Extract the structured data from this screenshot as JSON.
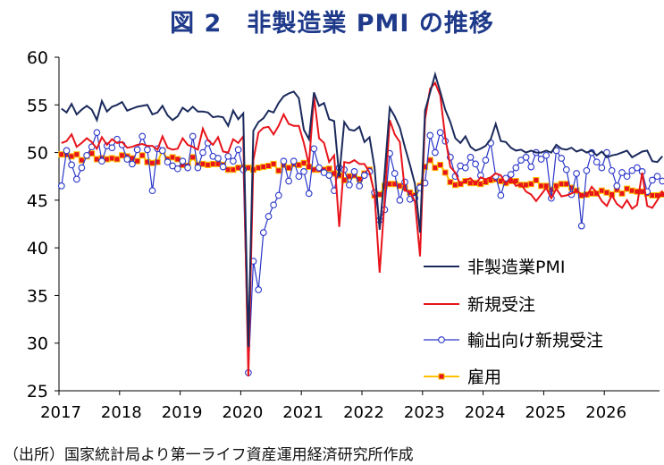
{
  "title": "図 2　非製造業 PMI の推移",
  "source": "（出所）国家統計局より第一ライフ資産運用経済研究所作成",
  "colors": {
    "pmi": "#1b2a5c",
    "new_orders": "#e8141b",
    "export_orders": "#2a36c8",
    "employment_line": "#ffc000",
    "employment_marker": "#e8141b",
    "axis": "#000000"
  },
  "chart_data": {
    "type": "line",
    "title": "図 2　非製造業 PMI の推移",
    "xlabel": "",
    "ylabel": "",
    "ylim": [
      25,
      60
    ],
    "yticks": [
      "25",
      "30",
      "35",
      "40",
      "45",
      "50",
      "55",
      "60"
    ],
    "xticks": [
      "2017",
      "2018",
      "2019",
      "2020",
      "2021",
      "2022",
      "2023",
      "2024",
      "2025",
      "2026"
    ],
    "x_start": "2017-01",
    "x_end": "2026-08",
    "grid": false,
    "legend_position": "right",
    "series": [
      {
        "name": "非製造業PMI",
        "style": "line",
        "values": [
          54.6,
          54.2,
          55.1,
          54.0,
          54.5,
          54.9,
          54.5,
          53.4,
          55.4,
          54.3,
          54.8,
          55.0,
          55.3,
          54.4,
          54.6,
          54.8,
          54.9,
          55.0,
          54.0,
          54.2,
          54.9,
          53.9,
          53.4,
          53.8,
          54.7,
          54.3,
          54.8,
          54.3,
          54.3,
          54.2,
          53.7,
          53.8,
          53.7,
          52.8,
          54.4,
          53.5,
          54.1,
          29.6,
          52.3,
          53.2,
          53.6,
          54.4,
          54.2,
          55.2,
          55.9,
          56.2,
          56.4,
          55.7,
          52.4,
          51.4,
          56.3,
          54.9,
          55.2,
          53.5,
          53.3,
          47.5,
          53.2,
          52.4,
          52.3,
          52.7,
          51.1,
          51.6,
          48.4,
          41.9,
          47.8,
          54.7,
          53.8,
          52.6,
          50.6,
          48.7,
          46.7,
          41.6,
          54.4,
          56.3,
          58.2,
          56.4,
          54.5,
          53.2,
          51.5,
          51.0,
          51.7,
          50.6,
          50.2,
          50.4,
          50.7,
          51.4,
          53.0,
          51.2,
          51.1,
          50.5,
          50.2,
          50.3,
          50.0,
          50.2,
          50.0,
          50.0,
          50.2,
          50.0,
          50.8,
          50.4,
          50.3,
          50.5,
          50.1,
          50.3,
          50.0,
          50.2,
          49.7,
          50.1,
          49.5,
          49.7,
          49.8,
          50.0,
          50.2,
          49.5,
          49.8,
          50.1,
          50.2,
          49.1,
          49.0,
          49.6
        ]
      },
      {
        "name": "新規受注",
        "style": "line",
        "values": [
          51.0,
          51.2,
          51.9,
          50.6,
          51.0,
          51.5,
          51.1,
          50.4,
          51.6,
          50.8,
          51.4,
          51.0,
          51.1,
          50.5,
          50.6,
          50.8,
          50.9,
          50.7,
          50.7,
          50.3,
          51.7,
          50.5,
          50.3,
          50.4,
          51.5,
          50.8,
          50.6,
          50.3,
          52.5,
          51.3,
          50.8,
          51.6,
          50.1,
          50.0,
          51.4,
          51.0,
          51.7,
          26.5,
          49.2,
          52.1,
          52.6,
          52.7,
          51.9,
          52.8,
          54.0,
          53.0,
          52.8,
          52.8,
          51.0,
          48.7,
          55.9,
          51.5,
          51.0,
          49.0,
          49.7,
          42.2,
          49.0,
          48.9,
          49.2,
          48.8,
          48.8,
          47.9,
          45.7,
          37.4,
          45.0,
          53.4,
          51.9,
          51.1,
          46.0,
          45.9,
          44.9,
          39.1,
          53.5,
          56.7,
          57.3,
          56.0,
          51.6,
          48.5,
          47.9,
          46.6,
          47.1,
          47.3,
          46.7,
          47.4,
          47.2,
          47.4,
          47.8,
          47.6,
          46.7,
          47.3,
          46.5,
          46.7,
          45.9,
          45.6,
          44.9,
          45.6,
          46.3,
          45.2,
          46.2,
          45.4,
          45.5,
          45.7,
          46.0,
          45.6,
          45.4,
          46.4,
          45.8,
          44.9,
          44.4,
          45.5,
          44.6,
          44.2,
          45.0,
          44.1,
          44.5,
          47.9,
          44.4,
          44.2,
          45.0,
          46.0
        ]
      },
      {
        "name": "輸出向け新規受注",
        "style": "line-open-circle",
        "values": [
          46.5,
          50.2,
          48.7,
          47.2,
          48.4,
          49.7,
          50.6,
          52.1,
          49.1,
          50.7,
          50.5,
          51.4,
          50.8,
          49.3,
          48.8,
          50.3,
          51.7,
          50.3,
          46.0,
          50.4,
          50.2,
          49.0,
          48.6,
          48.3,
          49.1,
          48.4,
          51.7,
          48.4,
          50.0,
          51.0,
          49.6,
          49.4,
          48.5,
          49.6,
          49.1,
          50.3,
          48.2,
          26.9,
          38.6,
          35.6,
          41.6,
          43.3,
          44.5,
          45.5,
          49.1,
          47.0,
          49.1,
          47.5,
          48.0,
          45.7,
          50.4,
          48.4,
          47.9,
          47.6,
          46.0,
          48.4,
          48.2,
          46.6,
          48.0,
          46.5,
          47.6,
          48.0,
          45.8,
          42.9,
          44.0,
          49.9,
          47.8,
          45.0,
          46.9,
          45.1,
          45.2,
          46.3,
          46.8,
          51.8,
          50.0,
          52.1,
          51.2,
          49.5,
          47.5,
          48.6,
          48.4,
          49.5,
          48.8,
          47.6,
          49.2,
          51.0,
          47.5,
          45.5,
          47.3,
          47.7,
          48.4,
          49.2,
          49.5,
          48.5,
          50.0,
          49.3,
          49.7,
          45.2,
          50.2,
          49.4,
          48.2,
          45.6,
          47.8,
          42.3,
          48.1,
          50.0,
          49.0,
          48.4,
          50.0,
          48.1,
          46.5,
          47.9,
          47.5,
          48.1,
          48.4,
          48.0,
          45.9,
          47.1,
          47.5,
          47.0
        ]
      },
      {
        "name": "雇用",
        "style": "line-square-marker",
        "values": [
          49.8,
          49.8,
          49.6,
          49.8,
          49.2,
          49.6,
          49.9,
          49.3,
          49.4,
          49.3,
          49.4,
          49.3,
          49.7,
          49.6,
          49.4,
          49.1,
          49.7,
          49.0,
          48.9,
          49.0,
          50.2,
          49.3,
          49.5,
          49.3,
          48.7,
          48.6,
          49.5,
          48.7,
          48.8,
          48.7,
          48.8,
          48.8,
          48.7,
          48.2,
          48.2,
          48.4,
          48.4,
          48.4,
          48.2,
          48.4,
          48.5,
          48.6,
          48.8,
          48.1,
          48.7,
          48.4,
          48.8,
          48.7,
          48.9,
          48.5,
          48.2,
          48.2,
          48.2,
          48.3,
          47.8,
          47.6,
          47.1,
          47.5,
          47.6,
          47.2,
          47.8,
          48.2,
          45.5,
          45.6,
          46.5,
          46.7,
          46.7,
          46.5,
          46.3,
          45.8,
          45.5,
          46.5,
          48.5,
          49.2,
          48.4,
          48.7,
          47.9,
          46.9,
          46.6,
          46.7,
          47.0,
          46.8,
          46.8,
          46.7,
          46.9,
          47.1,
          47.2,
          47.0,
          46.8,
          47.0,
          47.0,
          46.6,
          46.6,
          46.7,
          47.1,
          46.5,
          46.5,
          46.1,
          46.5,
          46.7,
          46.7,
          46.3,
          46.0,
          45.5,
          45.6,
          45.7,
          45.7,
          46.0,
          45.8,
          45.6,
          46.1,
          45.7,
          46.2,
          46.0,
          45.9,
          45.9,
          45.7,
          45.5,
          45.5,
          45.6
        ]
      }
    ]
  }
}
